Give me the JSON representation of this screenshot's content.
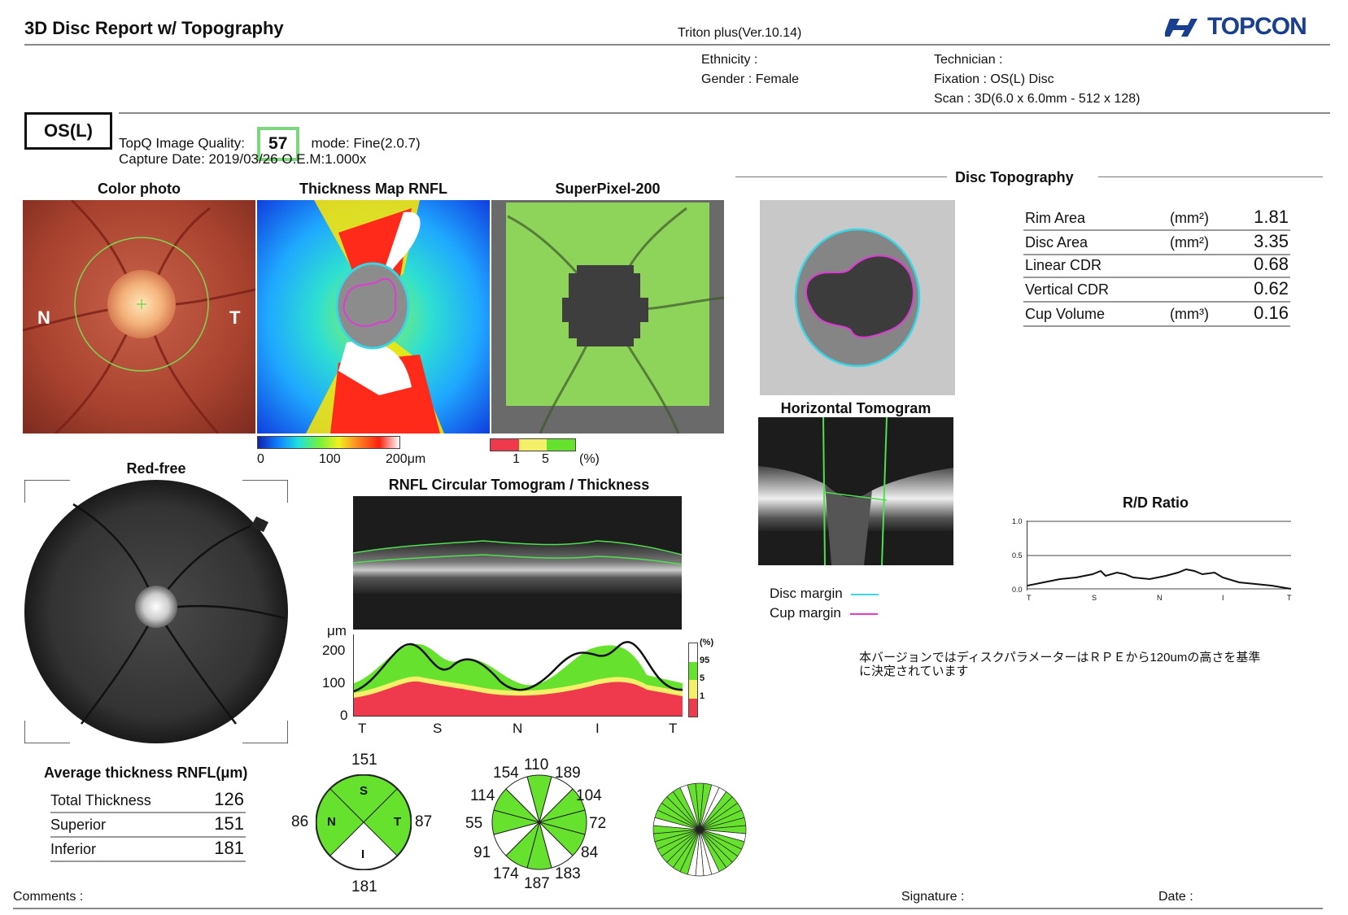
{
  "header": {
    "title": "3D Disc Report w/ Topography",
    "version": "Triton plus(Ver.10.14)",
    "brand": "TOPCON"
  },
  "patient": {
    "ethnicity": "Ethnicity :",
    "gender": "Gender : Female",
    "technician": "Technician :",
    "fixation": "Fixation : OS(L) Disc",
    "scan": "Scan : 3D(6.0 x 6.0mm - 512 x 128)"
  },
  "exam": {
    "eye": "OS(L)",
    "quality_label": "TopQ Image Quality:",
    "quality_value": "57",
    "mode": "mode: Fine(2.0.7)",
    "capture": "Capture Date: 2019/03/26  O.E.M:1.000x"
  },
  "panels": {
    "color_photo": "Color photo",
    "thickness_map": "Thickness Map RNFL",
    "superpixel": "SuperPixel-200",
    "red_free": "Red-free",
    "label_n": "N",
    "label_t": "T"
  },
  "scales": {
    "thickness_ticks": [
      "0",
      "100",
      "200μm"
    ],
    "significance_ticks": [
      "1",
      "5",
      "(%)"
    ]
  },
  "rnfl": {
    "title": "RNFL Circular Tomogram / Thickness",
    "yunit": "μm",
    "yticks": [
      "200",
      "100",
      "0"
    ],
    "xticks": [
      "T",
      "S",
      "N",
      "I",
      "T"
    ],
    "legend": [
      "(%)",
      "95",
      "5",
      "1"
    ]
  },
  "topography": {
    "title": "Disc Topography",
    "params": [
      {
        "label": "Rim Area",
        "unit": "(mm²)",
        "value": "1.81"
      },
      {
        "label": "Disc Area",
        "unit": "(mm²)",
        "value": "3.35"
      },
      {
        "label": "Linear CDR",
        "unit": "",
        "value": "0.68"
      },
      {
        "label": "Vertical CDR",
        "unit": "",
        "value": "0.62"
      },
      {
        "label": "Cup Volume",
        "unit": "(mm³)",
        "value": "0.16"
      }
    ]
  },
  "tomogram": {
    "title": "Horizontal Tomogram",
    "disc_margin": "Disc margin",
    "cup_margin": "Cup margin",
    "disc_color": "#39d6e6",
    "cup_color": "#e03ad6"
  },
  "rd_ratio": {
    "title": "R/D Ratio",
    "yticks": [
      "1.0",
      "0.5",
      "0.0"
    ],
    "xticks": [
      "T",
      "S",
      "N",
      "I",
      "T"
    ]
  },
  "note": "本バージョンではディスクパラメーターはＲＰＥから120umの高さを基準に決定されています",
  "average": {
    "title": "Average thickness RNFL(μm)",
    "rows": [
      {
        "label": "Total Thickness",
        "value": "126"
      },
      {
        "label": "Superior",
        "value": "151"
      },
      {
        "label": "Inferior",
        "value": "181"
      }
    ]
  },
  "quadrant": {
    "top": "151",
    "left": "86",
    "right": "87",
    "bottom": "181",
    "S": "S",
    "N": "N",
    "T": "T",
    "I": "I"
  },
  "clock": {
    "values": [
      "110",
      "189",
      "104",
      "72",
      "84",
      "183",
      "187",
      "174",
      "91",
      "55",
      "114",
      "154"
    ]
  },
  "footer": {
    "comments": "Comments :",
    "signature": "Signature :",
    "date": "Date :"
  },
  "colors": {
    "green": "#66e22e",
    "yellow": "#f5f06a",
    "red": "#ee3a4c",
    "logo_blue": "#1b3f8f"
  }
}
